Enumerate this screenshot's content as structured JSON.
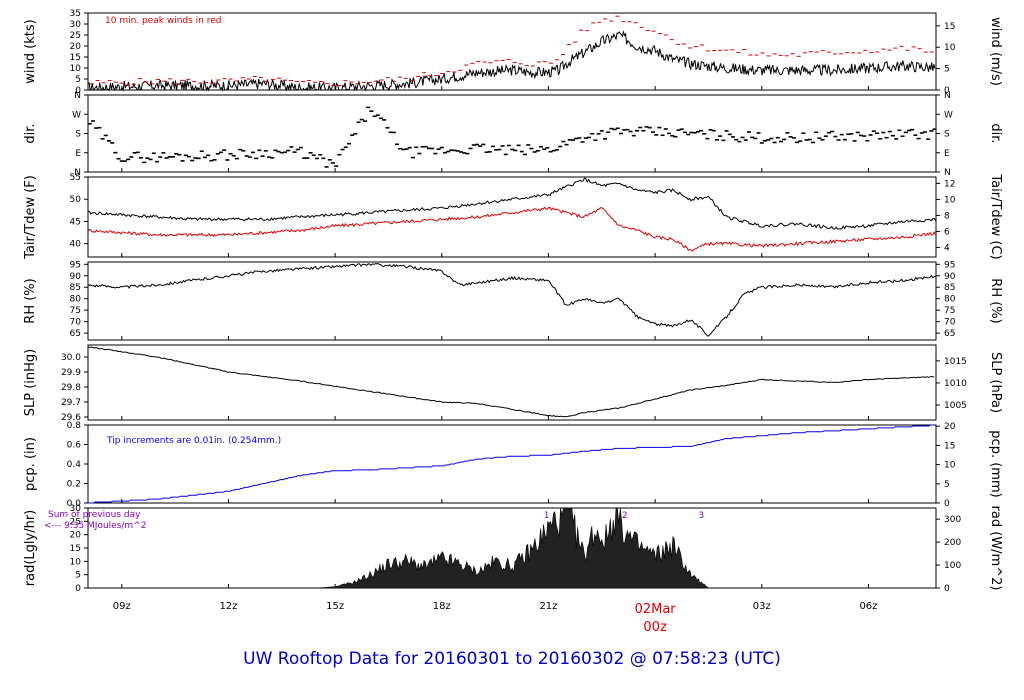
{
  "title": "UW Rooftop Data for 20160301  to  20160302 @ 07:58:23  (UTC)",
  "colors": {
    "frame": "#000000",
    "trace": "#000000",
    "accent_red": "#dd0000",
    "precip_blue": "#0000ee",
    "title_blue": "#0000cc",
    "rad_note_purple": "#8800cc"
  },
  "chart_data": [
    {
      "type": "line",
      "name": "wind",
      "ylabel": "wind (kts)",
      "y2label": "wind (m/s)",
      "ylim": [
        0,
        35
      ],
      "yticks": [
        "0",
        "5",
        "10",
        "15",
        "20",
        "25",
        "30",
        "35"
      ],
      "y2lim": [
        0,
        18
      ],
      "y2ticks": [
        "0",
        "5",
        "10",
        "15"
      ],
      "annotation": "10 min. peak winds in red",
      "x": [
        8,
        10,
        12,
        13,
        14,
        15,
        16,
        17,
        18,
        19,
        20,
        20.5,
        21,
        21.3,
        21.5,
        22,
        22.5,
        23,
        23.5,
        24,
        24.5,
        25,
        26,
        27,
        28,
        29,
        30,
        31,
        32
      ],
      "values": [
        1,
        2,
        2,
        3,
        1,
        1,
        2,
        3,
        5,
        8,
        9,
        8,
        8,
        9,
        12,
        17,
        22,
        25,
        20,
        18,
        14,
        12,
        10,
        9,
        9,
        9,
        10,
        11,
        10
      ],
      "peaks": [
        3,
        4,
        4,
        5,
        3,
        3,
        4,
        5,
        8,
        12,
        13,
        12,
        12,
        14,
        19,
        27,
        32,
        33,
        30,
        27,
        23,
        20,
        18,
        16,
        16,
        17,
        18,
        19,
        17
      ]
    },
    {
      "type": "scatter",
      "name": "dir",
      "ylabel": "dir.",
      "y2label": "dir.",
      "ylim": [
        0,
        360
      ],
      "yticks": [
        "N",
        "E",
        "S",
        "W",
        "N"
      ],
      "x": [
        8,
        9,
        10,
        11,
        12,
        13,
        14,
        15,
        16,
        17,
        18,
        19,
        20,
        21,
        22,
        23,
        24,
        25,
        26,
        27,
        28,
        29,
        30,
        31,
        32
      ],
      "values": [
        250,
        70,
        70,
        75,
        80,
        90,
        95,
        30,
        300,
        90,
        100,
        110,
        100,
        105,
        165,
        190,
        185,
        180,
        170,
        160,
        160,
        165,
        170,
        175,
        180
      ]
    },
    {
      "type": "line",
      "name": "temperature",
      "ylabel": "Tair/Tdew (F)",
      "y2label": "Tair/Tdew (C)",
      "ylim": [
        37,
        55
      ],
      "yticks": [
        "40",
        "45",
        "50",
        "55"
      ],
      "y2lim": [
        2.8,
        12.8
      ],
      "y2ticks": [
        "4",
        "6",
        "8",
        "10",
        "12"
      ],
      "series": [
        {
          "color": "#000000",
          "x": [
            8,
            9,
            10,
            11,
            12,
            13,
            14,
            15,
            16,
            17,
            18,
            19,
            20,
            21,
            22,
            22.5,
            23,
            23.5,
            24,
            24.5,
            25,
            25.5,
            26,
            27,
            28,
            29,
            30,
            31,
            32
          ],
          "values": [
            47,
            46.5,
            46,
            45.5,
            45.5,
            45.5,
            46,
            46.5,
            47,
            47.5,
            48,
            49,
            50,
            51,
            54.5,
            53,
            53.5,
            52,
            51.5,
            52,
            50,
            50.5,
            46,
            44,
            44.5,
            43.5,
            44,
            45,
            45.5
          ]
        },
        {
          "color": "#dd0000",
          "x": [
            8,
            9,
            10,
            11,
            12,
            13,
            14,
            15,
            16,
            17,
            18,
            19,
            20,
            21,
            22,
            22.5,
            23,
            23.5,
            24,
            24.5,
            25,
            25.5,
            26,
            27,
            28,
            29,
            30,
            31,
            32
          ],
          "values": [
            43,
            42.5,
            42,
            42,
            42,
            42.5,
            43,
            44,
            44.5,
            45,
            45.5,
            46,
            47,
            48,
            46,
            48,
            44,
            43,
            41.5,
            41,
            38.5,
            40,
            40,
            39.5,
            40,
            40.5,
            41,
            41.5,
            42.5
          ]
        }
      ]
    },
    {
      "type": "line",
      "name": "rh",
      "ylabel": "RH (%)",
      "y2label": "RH (%)",
      "ylim": [
        62,
        96
      ],
      "yticks": [
        "65",
        "70",
        "75",
        "80",
        "85",
        "90",
        "95"
      ],
      "x": [
        8,
        9,
        10,
        11,
        12,
        13,
        14,
        15,
        16,
        17,
        18,
        18.5,
        19,
        20,
        21,
        21.5,
        22,
        22.5,
        23,
        23.5,
        24,
        24.5,
        25,
        25.5,
        26,
        26.5,
        27,
        28,
        29,
        30,
        31,
        32
      ],
      "values": [
        86,
        85,
        86,
        88,
        90,
        92,
        93,
        94,
        95,
        94,
        92,
        86,
        87,
        89,
        88,
        77,
        80,
        78,
        80,
        72,
        69,
        68,
        71,
        64,
        72,
        82,
        85,
        86,
        85,
        87,
        88,
        90
      ]
    },
    {
      "type": "line",
      "name": "slp",
      "ylabel": "SLP (inHg)",
      "y2label": "SLP (hPa)",
      "ylim": [
        29.58,
        30.08
      ],
      "yticks": [
        "29.6",
        "29.7",
        "29.8",
        "29.9",
        "30.0"
      ],
      "y2lim": [
        1001.6,
        1018.6
      ],
      "y2ticks": [
        "1005",
        "1010",
        "1015"
      ],
      "x": [
        8,
        10,
        12,
        14,
        16,
        18,
        19,
        20,
        21,
        21.5,
        22,
        23,
        24,
        25,
        26,
        27,
        28,
        29,
        30,
        31,
        32
      ],
      "values": [
        30.07,
        30.0,
        29.9,
        29.84,
        29.77,
        29.7,
        29.69,
        29.65,
        29.61,
        29.6,
        29.63,
        29.66,
        29.72,
        29.78,
        29.81,
        29.85,
        29.84,
        29.83,
        29.85,
        29.86,
        29.87
      ]
    },
    {
      "type": "line",
      "name": "precip",
      "ylabel": "pcp. (in)",
      "y2label": "pcp. (mm)",
      "ylim": [
        0,
        0.8
      ],
      "yticks": [
        "0.0",
        "0.2",
        "0.4",
        "0.6",
        "0.8"
      ],
      "y2lim": [
        0,
        20.32
      ],
      "y2ticks": [
        "0",
        "5",
        "10",
        "15",
        "20"
      ],
      "annotation": "Tip increments are 0.01in. (0.254mm.)",
      "x": [
        8,
        10,
        12,
        13,
        14,
        15,
        16,
        17,
        18,
        19,
        20,
        21,
        22,
        23,
        24,
        25,
        26,
        27,
        28,
        29,
        30,
        31,
        32
      ],
      "values": [
        0,
        0.04,
        0.12,
        0.2,
        0.28,
        0.33,
        0.34,
        0.36,
        0.38,
        0.45,
        0.48,
        0.49,
        0.53,
        0.56,
        0.57,
        0.58,
        0.66,
        0.69,
        0.72,
        0.74,
        0.76,
        0.78,
        0.8
      ]
    },
    {
      "type": "area",
      "name": "radiation",
      "ylabel": "rad(Lgly/hr)",
      "y2label": "rad (W/m^2)",
      "ylim": [
        0,
        30
      ],
      "yticks": [
        "0",
        "5",
        "10",
        "15",
        "20",
        "25",
        "30"
      ],
      "y2lim": [
        0,
        348.6
      ],
      "y2ticks": [
        "0",
        "100",
        "200",
        "300"
      ],
      "note_lines": [
        "Sum of previous day",
        "<--- 9.35 MJoules/m^2"
      ],
      "markers": [
        "1",
        "2",
        "3"
      ],
      "x": [
        14.5,
        15,
        15.5,
        16,
        16.5,
        17,
        17.5,
        18,
        18.5,
        19,
        19.5,
        20,
        20.5,
        21,
        21.5,
        22,
        22.3,
        22.6,
        22.9,
        23.2,
        23.5,
        24,
        24.5,
        25,
        25.5
      ],
      "values": [
        0,
        0.5,
        2,
        5,
        9,
        10,
        8,
        11,
        9,
        6,
        10,
        8,
        14,
        22,
        30,
        12,
        22,
        18,
        29,
        20,
        16,
        12,
        16,
        5,
        0
      ]
    }
  ],
  "time_axis": {
    "labels": [
      "09z",
      "12z",
      "15z",
      "18z",
      "21z",
      "00z",
      "03z",
      "06z"
    ],
    "hours": [
      9,
      12,
      15,
      18,
      21,
      24,
      27,
      30
    ],
    "date_label": "02Mar",
    "start_hour": 8.05,
    "end_hour": 31.9
  }
}
